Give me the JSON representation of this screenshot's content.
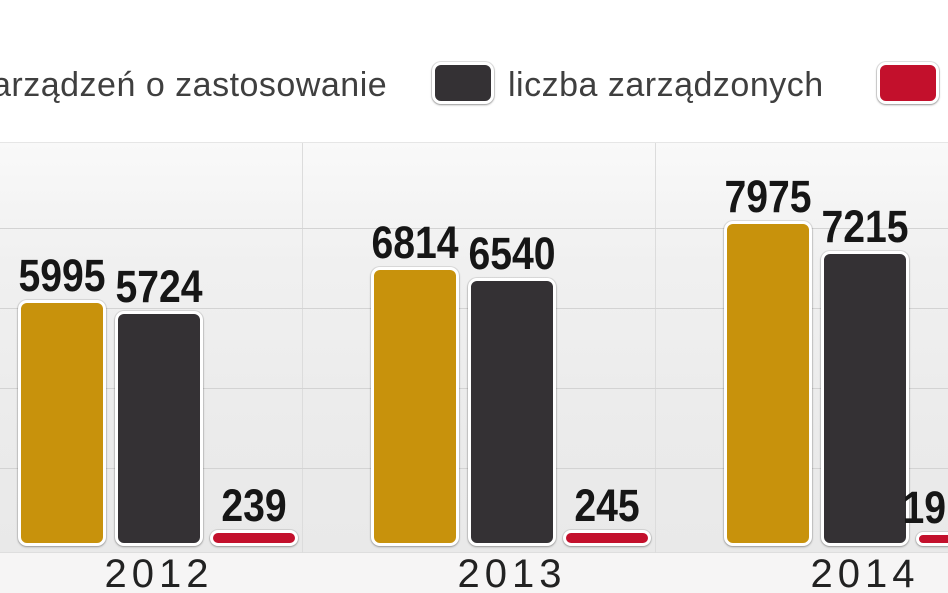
{
  "legend": {
    "items": [
      {
        "label": "arządzeń o zastosowanie",
        "swatch_color": "#C8920C",
        "swatch_visible": false,
        "note": "text clipped at left edge of image"
      },
      {
        "label": "liczba zarządzonych",
        "swatch_color": "#343134",
        "swatch_visible": true
      },
      {
        "label": "",
        "swatch_color": "#C3102C",
        "swatch_visible": true,
        "note": "label clipped at right edge of image"
      }
    ]
  },
  "chart_data": {
    "type": "bar",
    "categories": [
      "2012",
      "2013",
      "2014"
    ],
    "series": [
      {
        "name": "arządzeń o zastosowanie",
        "color": "#C8920C",
        "values": [
          5995,
          6814,
          7975
        ],
        "value_labels": [
          "5995",
          "6814",
          "7975"
        ]
      },
      {
        "name": "liczba zarządzonych",
        "color": "#343134",
        "values": [
          5724,
          6540,
          7215
        ],
        "value_labels": [
          "5724",
          "6540",
          "7215"
        ]
      },
      {
        "name": "",
        "color": "#C3102C",
        "values": [
          239,
          245,
          198
        ],
        "value_labels": [
          "239",
          "245",
          "19"
        ],
        "note": "2014 value label clipped at right edge, digits '19' visible; 198 estimated from bar height"
      }
    ],
    "ylim": [
      0,
      10200
    ],
    "gridline_values": [
      2000,
      4000,
      6000,
      8000
    ],
    "grid": "horizontal",
    "legend_position": "top",
    "xlabel": "",
    "ylabel": "",
    "title": ""
  },
  "colors": {
    "gold": "#C8920C",
    "dark": "#343134",
    "red": "#C3102C",
    "plot_background": "#ebebeb",
    "gridline": "#d3d3d3",
    "value_text": "#161616",
    "legend_text": "#3f3f3f",
    "year_text": "#222222"
  }
}
